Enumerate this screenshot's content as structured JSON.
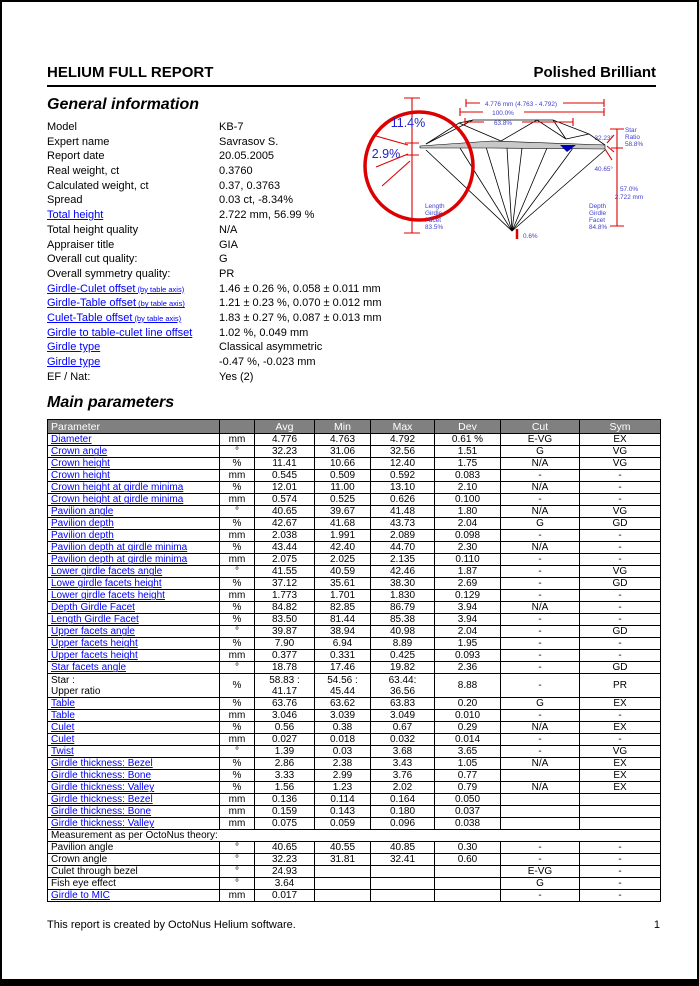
{
  "header": {
    "title": "HELIUM FULL REPORT",
    "subtitle": "Polished Brilliant"
  },
  "colors": {
    "link": "#0000FF",
    "dimension_red": "#DD0000",
    "diagram_blue": "#4040CC",
    "table_header_bg": "#808080",
    "girdle_gray": "#C8C8C8"
  },
  "general": {
    "heading": "General information",
    "rows": [
      {
        "label": "Model",
        "value": "KB-7",
        "link": false
      },
      {
        "label": "Expert name",
        "value": "Savrasov S.",
        "link": false
      },
      {
        "label": "Report date",
        "value": "20.05.2005",
        "link": false
      },
      {
        "label": "Real weight, ct",
        "value": "0.3760",
        "link": false
      },
      {
        "label": "Calculated weight, ct",
        "value": "0.37, 0.3763",
        "link": false
      },
      {
        "label": "Spread",
        "value": "0.03 ct, -8.34%",
        "link": false
      },
      {
        "label": "Total height",
        "value": "2.722 mm, 56.99 %",
        "link": true
      },
      {
        "label": "Total height quality",
        "value": "N/A",
        "link": false
      },
      {
        "label": "Appraiser title",
        "value": "GIA",
        "link": false
      },
      {
        "label": "Overall cut quality:",
        "value": "G",
        "link": false
      },
      {
        "label": "Overall symmetry quality:",
        "value": "PR",
        "link": false
      },
      {
        "label": "Girdle-Culet offset",
        "small": "(by table axis)",
        "value": "1.46 ± 0.26 %, 0.058 ± 0.011 mm",
        "link": true
      },
      {
        "label": "Girdle-Table offset",
        "small": "(by table axis)",
        "value": "1.21 ± 0.23 %, 0.070 ± 0.012 mm",
        "link": true
      },
      {
        "label": "Culet-Table offset",
        "small": "(by table axis)",
        "value": "1.83 ± 0.27 %, 0.087 ± 0.013 mm",
        "link": true
      },
      {
        "label": "Girdle to table-culet line offset",
        "value": "1.02 %, 0.049 mm",
        "link": true
      },
      {
        "label": "Girdle type",
        "value": "Classical asymmetric",
        "link": true
      },
      {
        "label": "Girdle type",
        "value": "-0.47 %, -0.023 mm",
        "link": true
      },
      {
        "label": "EF / Nat:",
        "value": "Yes (2)",
        "link": false
      }
    ]
  },
  "diagram": {
    "zoom_crown_height": "11.4%",
    "zoom_girdle": "2.9%",
    "top_mm": "4.776 mm (4.763 - 4.792)",
    "top_100": "100.0%",
    "top_table": "63.8%",
    "crown_angle": "32.23°",
    "pavilion_angle": "40.65°",
    "star_ratio": [
      "Star",
      "Ratio",
      "58.8%"
    ],
    "total_height": [
      "57.0%",
      "2.722 mm"
    ],
    "depth_girdle_facet": [
      "Depth",
      "Girdle",
      "Facet",
      "84.8%"
    ],
    "length_girdle_facet": [
      "Length",
      "Girdle",
      "Facet",
      "83.5%"
    ],
    "culet": "0.6%"
  },
  "table": {
    "heading": "Main parameters",
    "columns": [
      "Parameter",
      "",
      "Avg",
      "Min",
      "Max",
      "Dev",
      "Cut",
      "Sym"
    ],
    "rows": [
      {
        "param": "Diameter",
        "link": true,
        "unit": "mm",
        "avg": "4.776",
        "min": "4.763",
        "max": "4.792",
        "dev": "0.61 %",
        "cut": "E-VG",
        "sym": "EX"
      },
      {
        "param": "Crown angle",
        "link": true,
        "unit": "°",
        "avg": "32.23",
        "min": "31.06",
        "max": "32.56",
        "dev": "1.51",
        "cut": "G",
        "sym": "VG"
      },
      {
        "param": "Crown height",
        "link": true,
        "unit": "%",
        "avg": "11.41",
        "min": "10.66",
        "max": "12.40",
        "dev": "1.75",
        "cut": "N/A",
        "sym": "VG"
      },
      {
        "param": "Crown height",
        "link": true,
        "unit": "mm",
        "avg": "0.545",
        "min": "0.509",
        "max": "0.592",
        "dev": "0.083",
        "cut": "-",
        "sym": "-"
      },
      {
        "param": "Crown height at girdle minima",
        "link": true,
        "unit": "%",
        "avg": "12.01",
        "min": "11.00",
        "max": "13.10",
        "dev": "2.10",
        "cut": "N/A",
        "sym": "-"
      },
      {
        "param": "Crown height at girdle minima",
        "link": true,
        "unit": "mm",
        "avg": "0.574",
        "min": "0.525",
        "max": "0.626",
        "dev": "0.100",
        "cut": "-",
        "sym": "-"
      },
      {
        "param": "Pavilion angle",
        "link": true,
        "unit": "°",
        "avg": "40.65",
        "min": "39.67",
        "max": "41.48",
        "dev": "1.80",
        "cut": "N/A",
        "sym": "VG"
      },
      {
        "param": "Pavilion depth",
        "link": true,
        "unit": "%",
        "avg": "42.67",
        "min": "41.68",
        "max": "43.73",
        "dev": "2.04",
        "cut": "G",
        "sym": "GD"
      },
      {
        "param": "Pavilion depth",
        "link": true,
        "unit": "mm",
        "avg": "2.038",
        "min": "1.991",
        "max": "2.089",
        "dev": "0.098",
        "cut": "-",
        "sym": "-"
      },
      {
        "param": "Pavilion depth at girdle minima",
        "link": true,
        "unit": "%",
        "avg": "43.44",
        "min": "42.40",
        "max": "44.70",
        "dev": "2.30",
        "cut": "N/A",
        "sym": "-"
      },
      {
        "param": "Pavilion depth at girdle minima",
        "link": true,
        "unit": "mm",
        "avg": "2.075",
        "min": "2.025",
        "max": "2.135",
        "dev": "0.110",
        "cut": "-",
        "sym": "-"
      },
      {
        "param": "Lower girdle facets angle",
        "link": true,
        "unit": "°",
        "avg": "41.55",
        "min": "40.59",
        "max": "42.46",
        "dev": "1.87",
        "cut": "-",
        "sym": "VG"
      },
      {
        "param": "Lowe girdle facets height",
        "link": true,
        "unit": "%",
        "avg": "37.12",
        "min": "35.61",
        "max": "38.30",
        "dev": "2.69",
        "cut": "-",
        "sym": "GD"
      },
      {
        "param": "Lower girdle facets height",
        "link": true,
        "unit": "mm",
        "avg": "1.773",
        "min": "1.701",
        "max": "1.830",
        "dev": "0.129",
        "cut": "-",
        "sym": "-"
      },
      {
        "param": "Depth Girdle Facet",
        "link": true,
        "unit": "%",
        "avg": "84.82",
        "min": "82.85",
        "max": "86.79",
        "dev": "3.94",
        "cut": "N/A",
        "sym": "-"
      },
      {
        "param": "Length Girdle Facet",
        "link": true,
        "unit": "%",
        "avg": "83.50",
        "min": "81.44",
        "max": "85.38",
        "dev": "3.94",
        "cut": "-",
        "sym": "-"
      },
      {
        "param": "Upper facets angle",
        "link": true,
        "unit": "°",
        "avg": "39.87",
        "min": "38.94",
        "max": "40.98",
        "dev": "2.04",
        "cut": "-",
        "sym": "GD"
      },
      {
        "param": "Upper facets height",
        "link": true,
        "unit": "%",
        "avg": "7.90",
        "min": "6.94",
        "max": "8.89",
        "dev": "1.95",
        "cut": "-",
        "sym": "-"
      },
      {
        "param": "Upper facets height",
        "link": true,
        "unit": "mm",
        "avg": "0.377",
        "min": "0.331",
        "max": "0.425",
        "dev": "0.093",
        "cut": "-",
        "sym": "-"
      },
      {
        "param": "Star facets angle",
        "link": true,
        "unit": "°",
        "avg": "18.78",
        "min": "17.46",
        "max": "19.82",
        "dev": "2.36",
        "cut": "-",
        "sym": "GD"
      },
      {
        "param": "Star :\nUpper ratio",
        "link": false,
        "tall": true,
        "unit": "%",
        "avg": "58.83 :\n41.17",
        "min": "54.56 :\n45.44",
        "max": "63.44:\n36.56",
        "dev": "8.88",
        "cut": "-",
        "sym": "PR"
      },
      {
        "param": "Table",
        "link": true,
        "unit": "%",
        "avg": "63.76",
        "min": "63.62",
        "max": "63.83",
        "dev": "0.20",
        "cut": "G",
        "sym": "EX"
      },
      {
        "param": "Table",
        "link": true,
        "unit": "mm",
        "avg": "3.046",
        "min": "3.039",
        "max": "3.049",
        "dev": "0.010",
        "cut": "-",
        "sym": "-"
      },
      {
        "param": "Culet",
        "link": true,
        "unit": "%",
        "avg": "0.56",
        "min": "0.38",
        "max": "0.67",
        "dev": "0.29",
        "cut": "N/A",
        "sym": "EX"
      },
      {
        "param": "Culet",
        "link": true,
        "unit": "mm",
        "avg": "0.027",
        "min": "0.018",
        "max": "0.032",
        "dev": "0.014",
        "cut": "-",
        "sym": "-"
      },
      {
        "param": "Twist",
        "link": true,
        "unit": "°",
        "avg": "1.39",
        "min": "0.03",
        "max": "3.68",
        "dev": "3.65",
        "cut": "-",
        "sym": "VG"
      },
      {
        "param": "Girdle thickness: Bezel",
        "link": true,
        "unit": "%",
        "avg": "2.86",
        "min": "2.38",
        "max": "3.43",
        "dev": "1.05",
        "cut": "N/A",
        "sym": "EX"
      },
      {
        "param": "Girdle thickness: Bone",
        "link": true,
        "unit": "%",
        "avg": "3.33",
        "min": "2.99",
        "max": "3.76",
        "dev": "0.77",
        "cut": "",
        "sym": "EX"
      },
      {
        "param": "Girdle thickness: Valley",
        "link": true,
        "unit": "%",
        "avg": "1.56",
        "min": "1.23",
        "max": "2.02",
        "dev": "0.79",
        "cut": "N/A",
        "sym": "EX"
      },
      {
        "param": "Girdle thickness: Bezel",
        "link": true,
        "unit": "mm",
        "avg": "0.136",
        "min": "0.114",
        "max": "0.164",
        "dev": "0.050",
        "cut": "",
        "sym": ""
      },
      {
        "param": "Girdle thickness: Bone",
        "link": true,
        "unit": "mm",
        "avg": "0.159",
        "min": "0.143",
        "max": "0.180",
        "dev": "0.037",
        "cut": "",
        "sym": ""
      },
      {
        "param": "Girdle thickness: Valley",
        "link": true,
        "unit": "mm",
        "avg": "0.075",
        "min": "0.059",
        "max": "0.096",
        "dev": "0.038",
        "cut": "",
        "sym": ""
      },
      {
        "section": "Measurement as per OctoNus theory:"
      },
      {
        "param": "Pavilion angle",
        "link": false,
        "unit": "°",
        "avg": "40.65",
        "min": "40.55",
        "max": "40.85",
        "dev": "0.30",
        "cut": "-",
        "sym": "-"
      },
      {
        "param": "Crown angle",
        "link": false,
        "unit": "°",
        "avg": "32.23",
        "min": "31.81",
        "max": "32.41",
        "dev": "0.60",
        "cut": "-",
        "sym": "-"
      },
      {
        "param": "Culet through bezel",
        "link": false,
        "unit": "°",
        "avg": "24.93",
        "min": "",
        "max": "",
        "dev": "",
        "cut": "E-VG",
        "sym": "-"
      },
      {
        "param": "Fish eye effect",
        "link": false,
        "unit": "°",
        "avg": "3.64",
        "min": "",
        "max": "",
        "dev": "",
        "cut": "G",
        "sym": "-"
      },
      {
        "param": "Girdle to MIC",
        "link": true,
        "unit": "mm",
        "avg": "0.017",
        "min": "",
        "max": "",
        "dev": "",
        "cut": "-",
        "sym": "-"
      }
    ]
  },
  "footer": {
    "text": "This report is created by OctoNus Helium software.",
    "page": "1"
  }
}
